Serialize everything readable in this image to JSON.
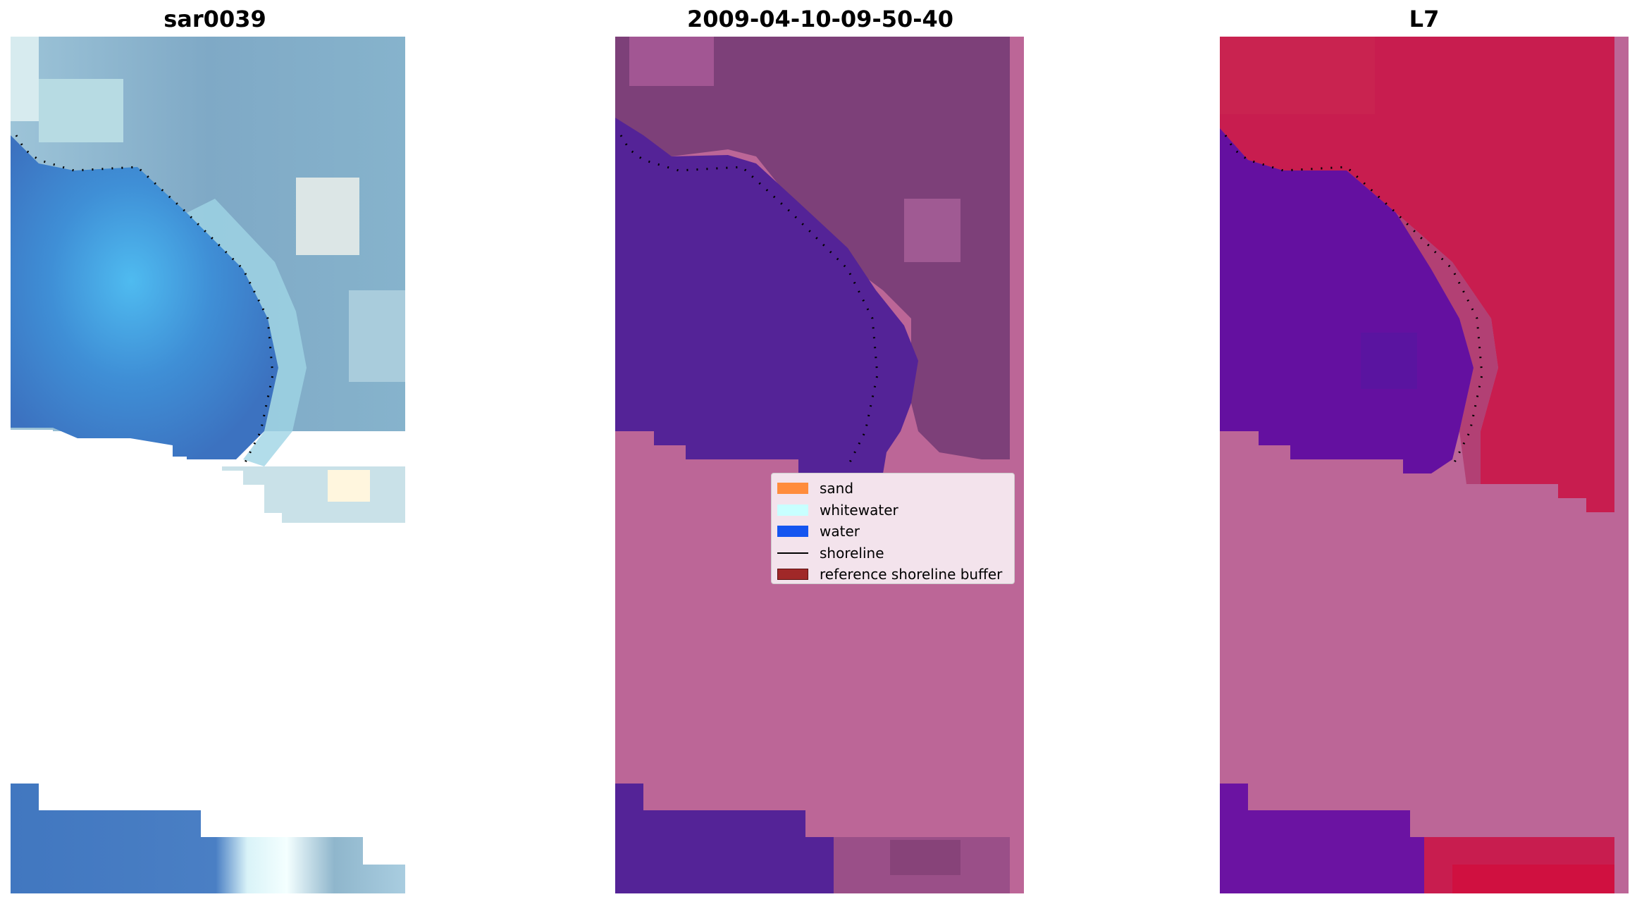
{
  "panels": [
    {
      "title": "sar0039"
    },
    {
      "title": "2009-04-10-09-50-40"
    },
    {
      "title": "L7"
    }
  ],
  "legend": {
    "items": [
      {
        "label": "sand",
        "type": "patch",
        "color": "#ff8c3c"
      },
      {
        "label": "whitewater",
        "type": "patch",
        "color": "#c8ffff"
      },
      {
        "label": "water",
        "type": "patch",
        "color": "#1455f0"
      },
      {
        "label": "shoreline",
        "type": "line",
        "color": "#000000"
      },
      {
        "label": "reference shoreline buffer",
        "type": "patch",
        "color": "#a02828"
      }
    ]
  },
  "colors": {
    "mask_pink": "#bc6697",
    "water_purple": "#542397",
    "land_mauve": "#7d4079",
    "l7_red": "#c81d4f",
    "l7_water": "#6410a0",
    "rgb_water": "#3a7fcf",
    "rgb_land": "#7fa9c6"
  }
}
